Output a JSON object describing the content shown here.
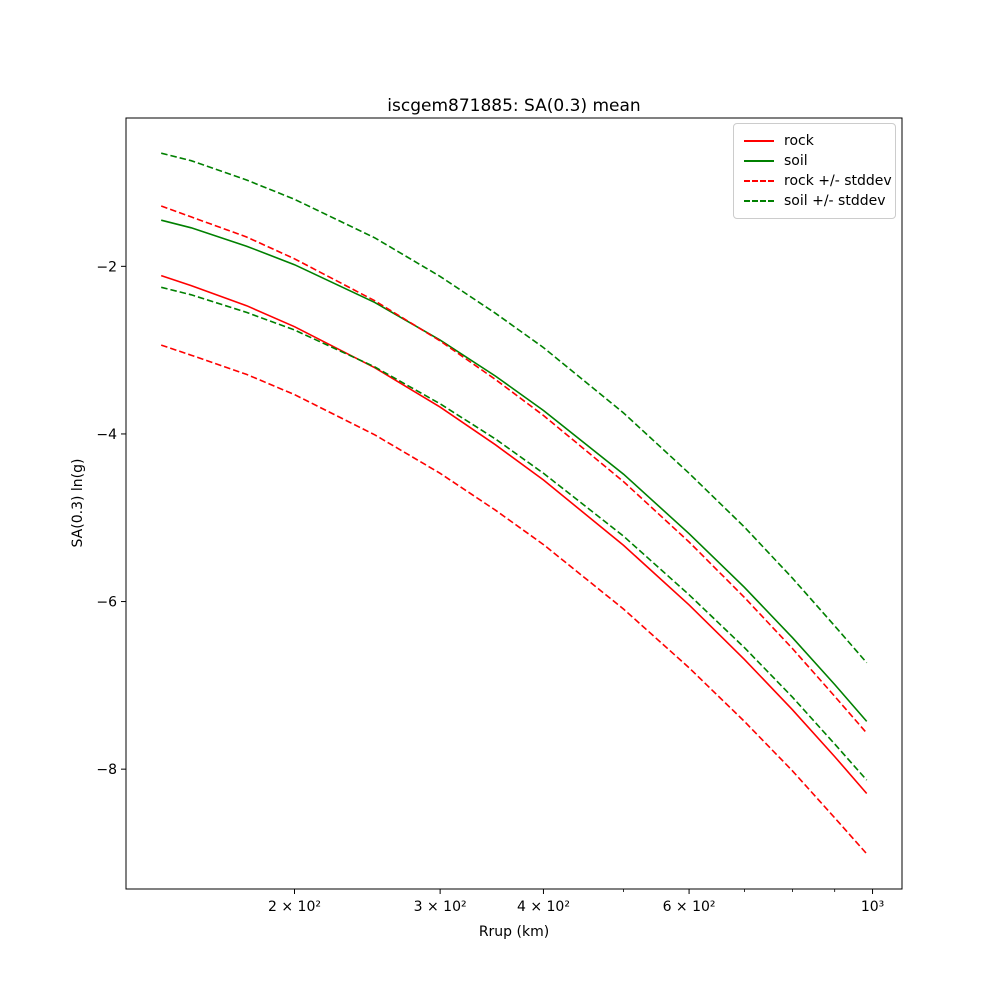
{
  "figure": {
    "title": "iscgem871885: SA(0.3) mean",
    "xlabel": "Rrup (km)",
    "ylabel": "SA(0.3) ln(g)",
    "background_color": "#ffffff",
    "axis_color": "#000000"
  },
  "legend": {
    "border_color": "#cccccc",
    "entries": [
      {
        "label": "rock",
        "color": "#ff0000",
        "style": "solid"
      },
      {
        "label": "soil",
        "color": "#008000",
        "style": "solid"
      },
      {
        "label": "rock +/- stddev",
        "color": "#ff0000",
        "style": "dashed"
      },
      {
        "label": "soil +/- stddev",
        "color": "#008000",
        "style": "dashed"
      }
    ]
  },
  "chart_data": {
    "type": "line",
    "title": "iscgem871885: SA(0.3) mean",
    "xlabel": "Rrup (km)",
    "ylabel": "SA(0.3) ln(g)",
    "xscale": "log",
    "grid": false,
    "legend_position": "upper right",
    "xlim": [
      125.1,
      1085.5
    ],
    "ylim": [
      -9.43,
      -0.23
    ],
    "xticks": [
      {
        "km": 200,
        "label": "2 × 10²"
      },
      {
        "km": 300,
        "label": "3 × 10²"
      },
      {
        "km": 400,
        "label": "4 × 10²"
      },
      {
        "km": 600,
        "label": "6 × 10²"
      },
      {
        "km": 1000,
        "label": "10³"
      }
    ],
    "minor_xticks": [
      500,
      700,
      800,
      900
    ],
    "yticks": [
      {
        "value": -2,
        "label": "−2"
      },
      {
        "value": -4,
        "label": "−4"
      },
      {
        "value": -6,
        "label": "−6"
      },
      {
        "value": -8,
        "label": "−8"
      }
    ],
    "x_km": [
      138,
      150,
      175,
      200,
      250,
      300,
      350,
      400,
      500,
      600,
      700,
      800,
      900,
      984
    ],
    "series": [
      {
        "name": "rock",
        "color": "#ff0000",
        "style": "solid",
        "values": [
          -2.11,
          -2.23,
          -2.47,
          -2.72,
          -3.21,
          -3.68,
          -4.13,
          -4.55,
          -5.33,
          -6.04,
          -6.69,
          -7.29,
          -7.85,
          -8.29
        ]
      },
      {
        "name": "soil",
        "color": "#008000",
        "style": "solid",
        "values": [
          -1.45,
          -1.54,
          -1.76,
          -1.98,
          -2.43,
          -2.88,
          -3.31,
          -3.72,
          -4.48,
          -5.19,
          -5.83,
          -6.43,
          -6.99,
          -7.43
        ]
      },
      {
        "name": "rock +/- stddev",
        "color": "#ff0000",
        "style": "dashed",
        "upper": [
          -1.28,
          -1.41,
          -1.65,
          -1.91,
          -2.41,
          -2.89,
          -3.35,
          -3.78,
          -4.57,
          -5.29,
          -5.95,
          -6.56,
          -7.13,
          -7.57
        ],
        "lower": [
          -2.94,
          -3.06,
          -3.29,
          -3.53,
          -4.01,
          -4.47,
          -4.91,
          -5.32,
          -6.09,
          -6.79,
          -7.43,
          -8.02,
          -8.58,
          -9.01
        ]
      },
      {
        "name": "soil +/- stddev",
        "color": "#008000",
        "style": "dashed",
        "upper": [
          -0.65,
          -0.74,
          -0.97,
          -1.2,
          -1.66,
          -2.12,
          -2.56,
          -2.97,
          -3.75,
          -4.47,
          -5.11,
          -5.72,
          -6.29,
          -6.73
        ],
        "lower": [
          -2.25,
          -2.34,
          -2.55,
          -2.76,
          -3.2,
          -3.64,
          -4.06,
          -4.47,
          -5.22,
          -5.92,
          -6.55,
          -7.14,
          -7.7,
          -8.13
        ]
      }
    ]
  }
}
